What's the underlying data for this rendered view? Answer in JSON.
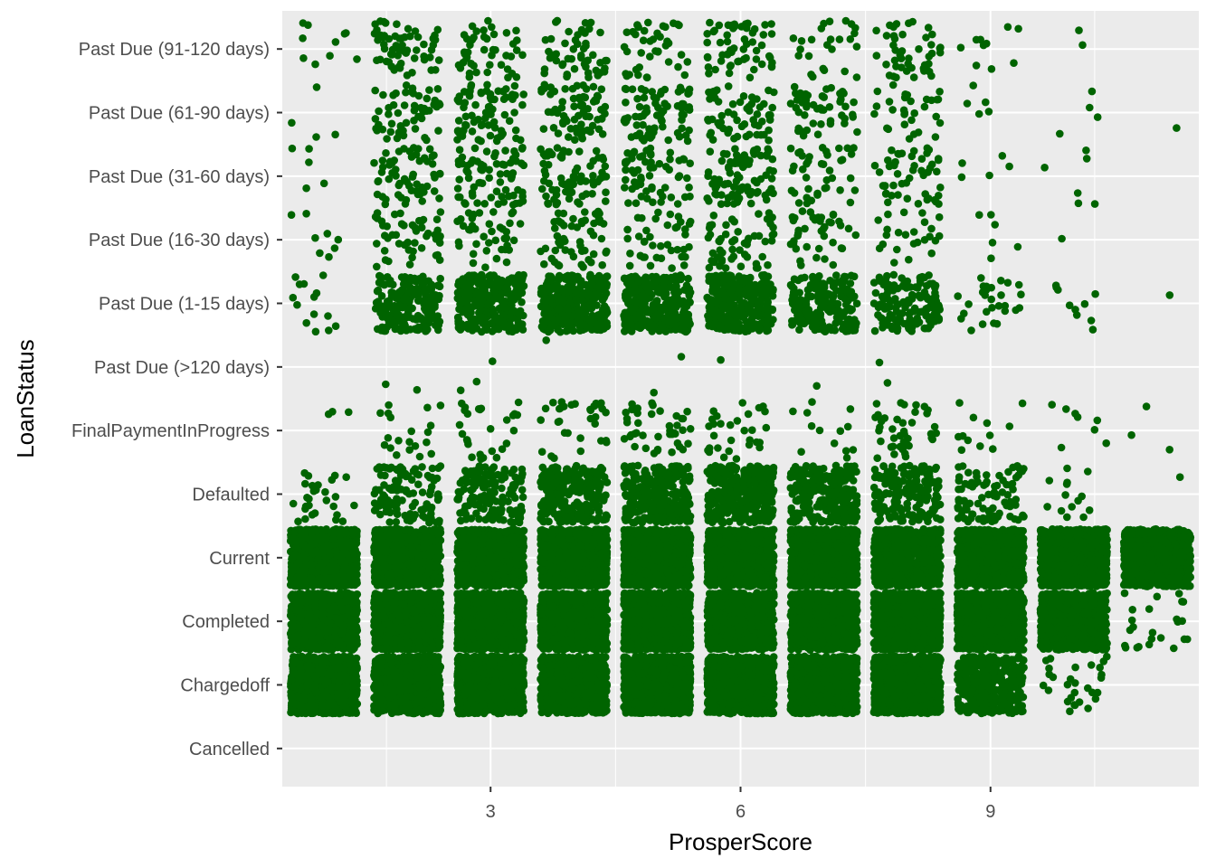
{
  "chart_data": {
    "type": "scatter",
    "style": "jitter",
    "xlabel": "ProsperScore",
    "ylabel": "LoanStatus",
    "xlim": [
      0.5,
      11.5
    ],
    "x_ticks": [
      3,
      6,
      9
    ],
    "x_tick_labels": [
      "3",
      "6",
      "9"
    ],
    "categories_y": [
      "Cancelled",
      "Chargedoff",
      "Completed",
      "Current",
      "Defaulted",
      "FinalPaymentInProgress",
      "Past Due (>120 days)",
      "Past Due (1-15 days)",
      "Past Due (16-30 days)",
      "Past Due (31-60 days)",
      "Past Due (61-90 days)",
      "Past Due (91-120 days)"
    ],
    "x_values": [
      1,
      2,
      3,
      4,
      5,
      6,
      7,
      8,
      9,
      10,
      11
    ],
    "jitter": {
      "width": 0.4,
      "height": 0.45
    },
    "point_color": "#006400",
    "panel_background": "#ebebeb",
    "grid": true,
    "approx_counts": {
      "Cancelled": [
        0,
        0,
        0,
        0,
        0,
        0,
        0,
        0,
        0,
        0,
        0
      ],
      "Chargedoff": [
        1000,
        1400,
        1800,
        2000,
        2000,
        1900,
        1600,
        1200,
        380,
        30,
        0
      ],
      "Completed": [
        1200,
        2600,
        3300,
        3600,
        3700,
        3400,
        3000,
        2500,
        1500,
        800,
        24
      ],
      "Current": [
        700,
        3400,
        6000,
        8000,
        9000,
        9200,
        8200,
        7400,
        5400,
        3300,
        1100
      ],
      "Defaulted": [
        28,
        110,
        140,
        240,
        280,
        300,
        250,
        160,
        90,
        14,
        1
      ],
      "FinalPaymentInProgress": [
        3,
        20,
        27,
        32,
        42,
        30,
        13,
        40,
        12,
        8,
        3
      ],
      "Past Due (>120 days)": [
        0,
        2,
        3,
        1,
        2,
        1,
        1,
        2,
        0,
        0,
        0
      ],
      "Past Due (1-15 days)": [
        14,
        200,
        280,
        320,
        320,
        270,
        200,
        140,
        28,
        10,
        1
      ],
      "Past Due (16-30 days)": [
        8,
        50,
        40,
        55,
        40,
        55,
        40,
        24,
        6,
        1,
        0
      ],
      "Past Due (31-60 days)": [
        5,
        60,
        70,
        70,
        60,
        90,
        40,
        50,
        5,
        6,
        0
      ],
      "Past Due (61-90 days)": [
        4,
        55,
        75,
        70,
        75,
        60,
        50,
        30,
        5,
        4,
        1
      ],
      "Past Due (91-120 days)": [
        10,
        60,
        45,
        50,
        40,
        60,
        25,
        45,
        10,
        2,
        0
      ]
    }
  }
}
